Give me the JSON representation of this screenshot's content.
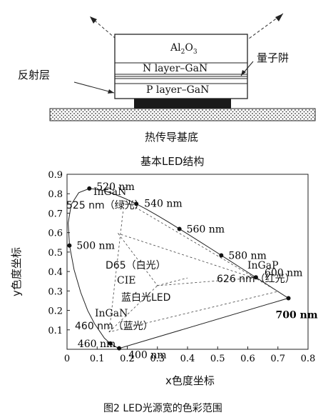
{
  "structure": {
    "al2o3": {
      "base": "Al",
      "sub1": "2",
      "mid": "O",
      "sub2": "3"
    },
    "quantum_well": "量子阱",
    "reflective_layer": "反射层",
    "n_layer": "N layer–GaN",
    "p_layer": "P layer–GaN",
    "substrate": "热传导基底",
    "title": "基本LED结构"
  },
  "chromaticity": {
    "y_axis_label": "y色度坐标",
    "x_axis_label": "x色度坐标",
    "x_ticks": [
      "0",
      "0.1",
      "0.2",
      "0.3",
      "0.4",
      "0.5",
      "0.6",
      "0.7",
      "0.8"
    ],
    "y_ticks": [
      "0.9",
      "0.8",
      "0.7",
      "0.6",
      "0.5",
      "0.4",
      "0.3",
      "0.2",
      "0.1"
    ],
    "wavelength_points": [
      {
        "label": "520 nm",
        "x": 0.074,
        "y": 0.834
      },
      {
        "label": "540 nm",
        "x": 0.23,
        "y": 0.754
      },
      {
        "label": "560 nm",
        "x": 0.373,
        "y": 0.624
      },
      {
        "label": "580 nm",
        "x": 0.512,
        "y": 0.487
      },
      {
        "label": "600 nm",
        "x": 0.627,
        "y": 0.373
      },
      {
        "label": "700 nm",
        "x": 0.735,
        "y": 0.265
      },
      {
        "label": "500 nm",
        "x": 0.008,
        "y": 0.538
      },
      {
        "label": "460 nm",
        "x": 0.144,
        "y": 0.03
      },
      {
        "label": "400 nm",
        "x": 0.173,
        "y": 0.005
      }
    ],
    "annotations": {
      "ingan_green_1": "InGaN",
      "ingan_green_2": "525 nm（绿光）",
      "d65": "D65（白光）",
      "cie": "CIE",
      "blue_white": "蓝白光LED",
      "ingan_blue_1": "InGaN",
      "ingan_blue_2": "460 nm（蓝光）",
      "ingap_1": "InGaP",
      "ingap_2": "626 nm（红光）"
    }
  },
  "caption": "图2 LED光源宽的色彩范围"
}
